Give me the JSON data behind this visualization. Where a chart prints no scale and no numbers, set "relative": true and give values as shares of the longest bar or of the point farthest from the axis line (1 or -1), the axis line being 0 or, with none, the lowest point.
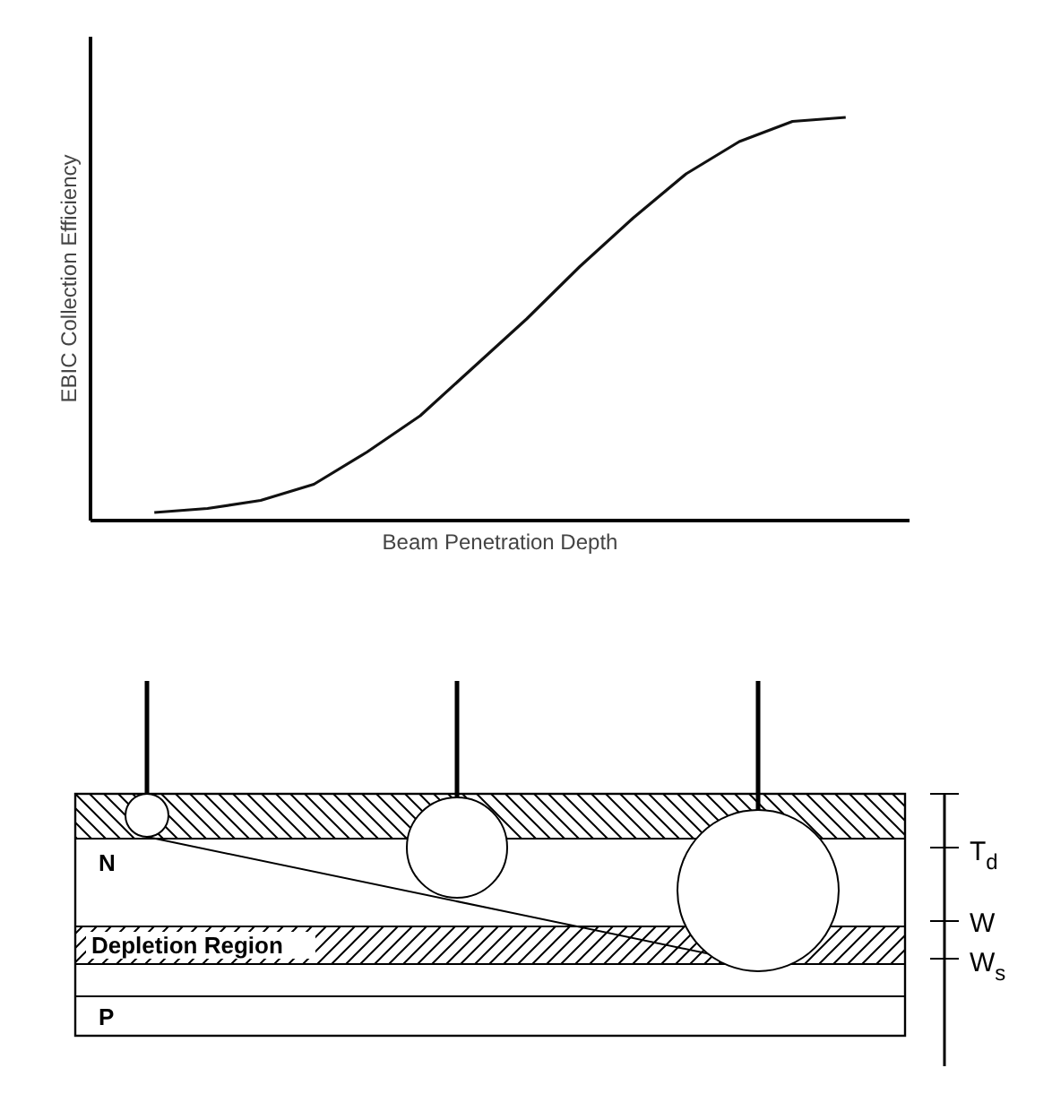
{
  "chart_data": [
    {
      "type": "line",
      "relative": true,
      "xlabel": "Beam Penetration Depth",
      "ylabel": "EBIC Collection Efficiency",
      "tick_labels": false,
      "line_style": "solid",
      "categories": [
        null,
        null,
        null,
        null,
        null,
        null,
        null,
        null,
        null,
        null,
        null,
        null,
        null,
        null
      ],
      "series": [
        {
          "color": "#111111",
          "values": [
            0.02,
            0.03,
            0.05,
            0.09,
            0.17,
            0.26,
            0.38,
            0.5,
            0.63,
            0.75,
            0.86,
            0.94,
            0.99,
            1.0
          ]
        }
      ]
    },
    {
      "type": "other",
      "annotations": [
        "N",
        "Depletion Region",
        "P",
        "T$_{d}$",
        "W",
        "W$_{s}$"
      ]
    }
  ]
}
